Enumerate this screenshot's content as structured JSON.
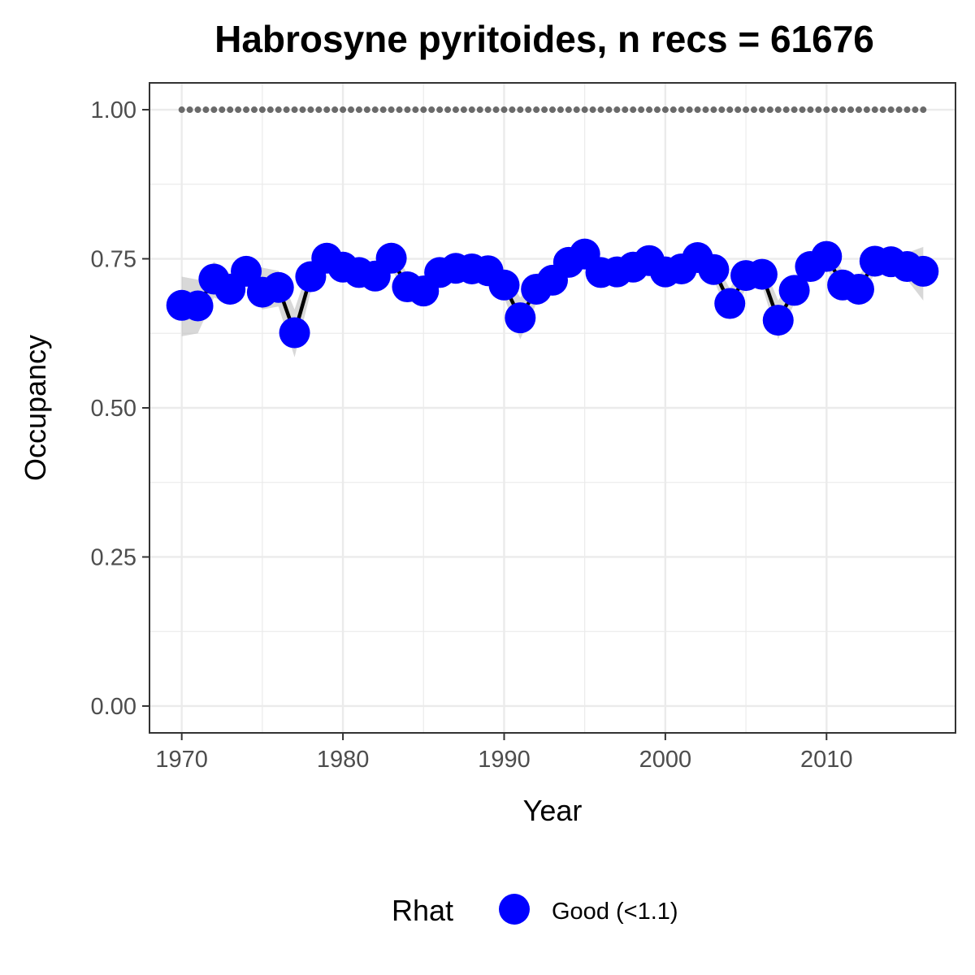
{
  "chart_data": {
    "type": "line",
    "title": "Habrosyne pyritoides, n recs = 61676",
    "xlabel": "Year",
    "ylabel": "Occupancy",
    "xlim": [
      1968,
      2018
    ],
    "ylim": [
      -0.045,
      1.045
    ],
    "x_ticks": [
      1970,
      1980,
      1990,
      2000,
      2010
    ],
    "y_ticks": [
      0.0,
      0.25,
      0.5,
      0.75,
      1.0
    ],
    "y_tick_labels": [
      "0.00",
      "0.25",
      "0.50",
      "0.75",
      "1.00"
    ],
    "grid": true,
    "legend": {
      "title": "Rhat",
      "placement": "bottom",
      "entries": [
        {
          "label": "Good (<1.1)",
          "color": "#0000ff"
        }
      ]
    },
    "series": [
      {
        "x": [
          1970,
          1971,
          1972,
          1973,
          1974,
          1975,
          1976,
          1977,
          1978,
          1979,
          1980,
          1981,
          1982,
          1983,
          1984,
          1985,
          1986,
          1987,
          1988,
          1989,
          1990,
          1991,
          1992,
          1993,
          1994,
          1995,
          1996,
          1997,
          1998,
          1999,
          2000,
          2001,
          2002,
          2003,
          2004,
          2005,
          2006,
          2007,
          2008,
          2009,
          2010,
          2011,
          2012,
          2013,
          2014,
          2015,
          2016
        ],
        "y": [
          0.672,
          0.671,
          0.716,
          0.699,
          0.729,
          0.694,
          0.702,
          0.626,
          0.72,
          0.751,
          0.736,
          0.727,
          0.721,
          0.751,
          0.703,
          0.696,
          0.727,
          0.734,
          0.733,
          0.73,
          0.706,
          0.651,
          0.699,
          0.714,
          0.744,
          0.758,
          0.727,
          0.728,
          0.736,
          0.747,
          0.728,
          0.733,
          0.752,
          0.732,
          0.675,
          0.722,
          0.724,
          0.647,
          0.697,
          0.737,
          0.754,
          0.706,
          0.699,
          0.746,
          0.745,
          0.737,
          0.729
        ],
        "lower": [
          0.62,
          0.625,
          0.685,
          0.675,
          0.705,
          0.665,
          0.67,
          0.585,
          0.695,
          0.735,
          0.72,
          0.71,
          0.705,
          0.735,
          0.68,
          0.67,
          0.705,
          0.715,
          0.715,
          0.71,
          0.685,
          0.615,
          0.675,
          0.695,
          0.725,
          0.74,
          0.71,
          0.71,
          0.72,
          0.73,
          0.71,
          0.715,
          0.735,
          0.715,
          0.65,
          0.7,
          0.705,
          0.615,
          0.675,
          0.715,
          0.735,
          0.685,
          0.68,
          0.725,
          0.725,
          0.715,
          0.68
        ],
        "upper": [
          0.72,
          0.715,
          0.745,
          0.725,
          0.75,
          0.735,
          0.73,
          0.665,
          0.745,
          0.77,
          0.755,
          0.745,
          0.74,
          0.77,
          0.725,
          0.72,
          0.75,
          0.755,
          0.755,
          0.75,
          0.73,
          0.685,
          0.725,
          0.735,
          0.765,
          0.775,
          0.745,
          0.745,
          0.755,
          0.765,
          0.745,
          0.75,
          0.77,
          0.75,
          0.7,
          0.745,
          0.745,
          0.68,
          0.72,
          0.755,
          0.775,
          0.73,
          0.72,
          0.765,
          0.765,
          0.76,
          0.77
        ],
        "rhat": "Good (<1.1)"
      },
      {
        "x": [
          1970,
          1971,
          1972,
          1973,
          1974,
          1975,
          1976,
          1977,
          1978,
          1979,
          1980,
          1981,
          1982,
          1983,
          1984,
          1985,
          1986,
          1987,
          1988,
          1989,
          1990,
          1991,
          1992,
          1993,
          1994,
          1995,
          1996,
          1997,
          1998,
          1999,
          2000,
          2001,
          2002,
          2003,
          2004,
          2005,
          2006,
          2007,
          2008,
          2009,
          2010,
          2011,
          2012,
          2013,
          2014,
          2015,
          2016
        ],
        "y": [
          1,
          1,
          1,
          1,
          1,
          1,
          1,
          1,
          1,
          1,
          1,
          1,
          1,
          1,
          1,
          1,
          1,
          1,
          1,
          1,
          1,
          1,
          1,
          1,
          1,
          1,
          1,
          1,
          1,
          1,
          1,
          1,
          1,
          1,
          1,
          1,
          1,
          1,
          1,
          1,
          1,
          1,
          1,
          1,
          1,
          1,
          1
        ],
        "style": "dotted"
      }
    ],
    "colors": {
      "point": "#0000ff",
      "line": "#000000",
      "ribbon": "#bebebe",
      "dotted": "#6a6a6a",
      "grid": "#ebebeb",
      "border": "#333333"
    }
  }
}
